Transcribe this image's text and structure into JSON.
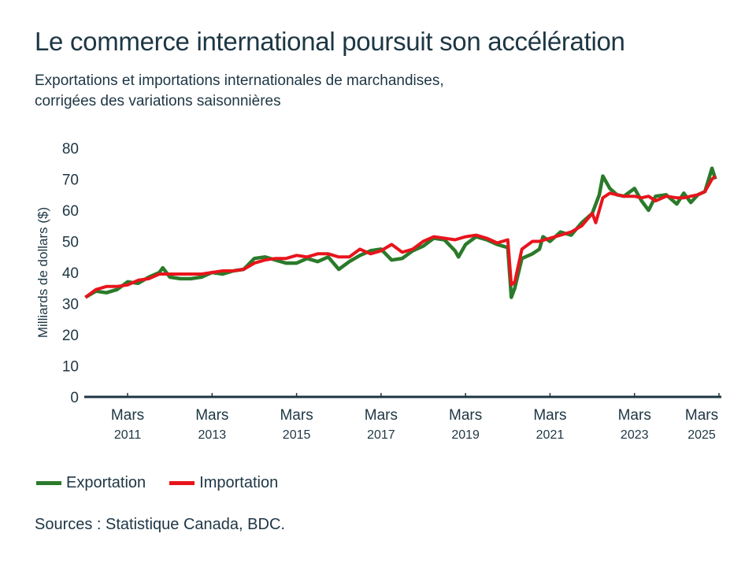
{
  "title": "Le commerce international poursuit son accélération",
  "subtitle_lines": [
    "Exportations et importations internationales de marchandises,",
    "corrigées des variations saisonnières"
  ],
  "source": "Sources : Statistique Canada, BDC.",
  "chart_data": {
    "type": "line",
    "ylabel": "Milliards de dollars ($)",
    "ylim": [
      0,
      80
    ],
    "yticks": [
      0,
      10,
      20,
      30,
      40,
      50,
      60,
      70,
      80
    ],
    "xticks": [
      {
        "date": "2011-03",
        "label": "Mars",
        "sub": "2011"
      },
      {
        "date": "2013-03",
        "label": "Mars",
        "sub": "2013"
      },
      {
        "date": "2015-03",
        "label": "Mars",
        "sub": "2015"
      },
      {
        "date": "2017-03",
        "label": "Mars",
        "sub": "2017"
      },
      {
        "date": "2019-03",
        "label": "Mars",
        "sub": "2019"
      },
      {
        "date": "2021-03",
        "label": "Mars",
        "sub": "2021"
      },
      {
        "date": "2023-03",
        "label": "Mars",
        "sub": "2023"
      },
      {
        "date": "2025-03",
        "label": "Mars",
        "sub": "2025"
      }
    ],
    "grid": false,
    "legend_position": "bottom-left",
    "series": [
      {
        "name": "Exportation",
        "color": "#2a7a2a",
        "points": [
          [
            "2010-03",
            32
          ],
          [
            "2010-06",
            34
          ],
          [
            "2010-09",
            33.5
          ],
          [
            "2010-12",
            34.5
          ],
          [
            "2011-03",
            37
          ],
          [
            "2011-06",
            36.5
          ],
          [
            "2011-09",
            38.5
          ],
          [
            "2011-12",
            40
          ],
          [
            "2012-01",
            41.5
          ],
          [
            "2012-03",
            38.5
          ],
          [
            "2012-06",
            38
          ],
          [
            "2012-09",
            38
          ],
          [
            "2012-12",
            38.5
          ],
          [
            "2013-03",
            40
          ],
          [
            "2013-06",
            39.5
          ],
          [
            "2013-09",
            40.5
          ],
          [
            "2013-12",
            41
          ],
          [
            "2014-03",
            44.5
          ],
          [
            "2014-06",
            45
          ],
          [
            "2014-09",
            44
          ],
          [
            "2014-12",
            43
          ],
          [
            "2015-03",
            43
          ],
          [
            "2015-06",
            44.5
          ],
          [
            "2015-09",
            43.5
          ],
          [
            "2015-12",
            45
          ],
          [
            "2016-03",
            41
          ],
          [
            "2016-06",
            43.5
          ],
          [
            "2016-09",
            45.5
          ],
          [
            "2016-12",
            47
          ],
          [
            "2017-03",
            47.5
          ],
          [
            "2017-06",
            44
          ],
          [
            "2017-09",
            44.5
          ],
          [
            "2017-12",
            47
          ],
          [
            "2018-03",
            48.5
          ],
          [
            "2018-06",
            51
          ],
          [
            "2018-09",
            50.5
          ],
          [
            "2018-12",
            47
          ],
          [
            "2019-01",
            45
          ],
          [
            "2019-03",
            49
          ],
          [
            "2019-06",
            51.5
          ],
          [
            "2019-09",
            50.5
          ],
          [
            "2019-12",
            49
          ],
          [
            "2020-03",
            48
          ],
          [
            "2020-04",
            32
          ],
          [
            "2020-05",
            35
          ],
          [
            "2020-07",
            44.5
          ],
          [
            "2020-10",
            46
          ],
          [
            "2020-12",
            47.5
          ],
          [
            "2021-01",
            51.5
          ],
          [
            "2021-03",
            50
          ],
          [
            "2021-06",
            53
          ],
          [
            "2021-09",
            52
          ],
          [
            "2021-12",
            56
          ],
          [
            "2022-03",
            59
          ],
          [
            "2022-05",
            65
          ],
          [
            "2022-06",
            71
          ],
          [
            "2022-08",
            67
          ],
          [
            "2022-10",
            65
          ],
          [
            "2022-12",
            64.5
          ],
          [
            "2023-03",
            67
          ],
          [
            "2023-05",
            63
          ],
          [
            "2023-07",
            60
          ],
          [
            "2023-09",
            64.5
          ],
          [
            "2023-12",
            65
          ],
          [
            "2024-03",
            62
          ],
          [
            "2024-05",
            65.5
          ],
          [
            "2024-07",
            62.5
          ],
          [
            "2024-09",
            65
          ],
          [
            "2024-11",
            66
          ],
          [
            "2025-01",
            73.5
          ],
          [
            "2025-02",
            70
          ]
        ]
      },
      {
        "name": "Importation",
        "color": "#e8141c",
        "points": [
          [
            "2010-03",
            32
          ],
          [
            "2010-06",
            34.5
          ],
          [
            "2010-09",
            35.5
          ],
          [
            "2010-12",
            35.5
          ],
          [
            "2011-03",
            36
          ],
          [
            "2011-06",
            37.5
          ],
          [
            "2011-09",
            38
          ],
          [
            "2011-12",
            39.5
          ],
          [
            "2012-03",
            39.5
          ],
          [
            "2012-06",
            39.5
          ],
          [
            "2012-09",
            39.5
          ],
          [
            "2012-12",
            39.5
          ],
          [
            "2013-03",
            40
          ],
          [
            "2013-06",
            40.5
          ],
          [
            "2013-09",
            40.5
          ],
          [
            "2013-12",
            41
          ],
          [
            "2014-03",
            43
          ],
          [
            "2014-06",
            44
          ],
          [
            "2014-09",
            44.5
          ],
          [
            "2014-12",
            44.5
          ],
          [
            "2015-03",
            45.5
          ],
          [
            "2015-06",
            45
          ],
          [
            "2015-09",
            46
          ],
          [
            "2015-12",
            46
          ],
          [
            "2016-03",
            45
          ],
          [
            "2016-06",
            45
          ],
          [
            "2016-09",
            47.5
          ],
          [
            "2016-12",
            46
          ],
          [
            "2017-03",
            47
          ],
          [
            "2017-06",
            49
          ],
          [
            "2017-09",
            46.5
          ],
          [
            "2017-12",
            47.5
          ],
          [
            "2018-03",
            50
          ],
          [
            "2018-06",
            51.5
          ],
          [
            "2018-09",
            51
          ],
          [
            "2018-12",
            50.5
          ],
          [
            "2019-03",
            51.5
          ],
          [
            "2019-06",
            52
          ],
          [
            "2019-09",
            51
          ],
          [
            "2019-12",
            49.5
          ],
          [
            "2020-03",
            50.5
          ],
          [
            "2020-04",
            36
          ],
          [
            "2020-05",
            37
          ],
          [
            "2020-07",
            47.5
          ],
          [
            "2020-10",
            50
          ],
          [
            "2020-12",
            50
          ],
          [
            "2021-03",
            51
          ],
          [
            "2021-06",
            52
          ],
          [
            "2021-09",
            53
          ],
          [
            "2021-12",
            55
          ],
          [
            "2022-03",
            59
          ],
          [
            "2022-04",
            56
          ],
          [
            "2022-06",
            64
          ],
          [
            "2022-08",
            65.5
          ],
          [
            "2022-10",
            65
          ],
          [
            "2022-12",
            64.5
          ],
          [
            "2023-03",
            64.5
          ],
          [
            "2023-05",
            64
          ],
          [
            "2023-07",
            64.5
          ],
          [
            "2023-09",
            63
          ],
          [
            "2023-12",
            64.5
          ],
          [
            "2024-03",
            64
          ],
          [
            "2024-05",
            64
          ],
          [
            "2024-07",
            64.5
          ],
          [
            "2024-09",
            65
          ],
          [
            "2024-11",
            66
          ],
          [
            "2025-01",
            70
          ],
          [
            "2025-02",
            71
          ]
        ]
      }
    ]
  }
}
